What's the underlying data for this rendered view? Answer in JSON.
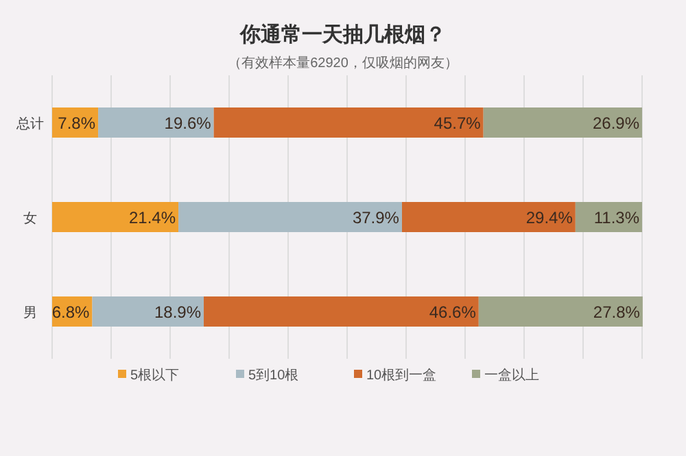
{
  "chart_data": {
    "type": "bar",
    "orientation": "horizontal",
    "stacked": true,
    "title": "你通常一天抽几根烟？",
    "subtitle": "（有效样本量62920，仅吸烟的网友）",
    "categories": [
      "总计",
      "女",
      "男"
    ],
    "series": [
      {
        "name": "5根以下",
        "color": "#f0a130",
        "values": [
          7.8,
          21.4,
          6.8
        ],
        "value_labels": [
          "7.8%",
          "21.4%",
          "6.8%"
        ]
      },
      {
        "name": "5到10根",
        "color": "#a9bbc4",
        "values": [
          19.6,
          37.9,
          18.9
        ],
        "value_labels": [
          "19.6%",
          "37.9%",
          "18.9%"
        ]
      },
      {
        "name": "10根到一盒",
        "color": "#d06a2e",
        "values": [
          45.7,
          29.4,
          46.6
        ],
        "value_labels": [
          "45.7%",
          "29.4%",
          "46.6%"
        ]
      },
      {
        "name": "一盒以上",
        "color": "#9fa68a",
        "values": [
          26.9,
          11.3,
          27.8
        ],
        "value_labels": [
          "26.9%",
          "11.3%",
          "27.8%"
        ]
      }
    ],
    "xlim": [
      0,
      100
    ],
    "xticks": [
      {
        "value": 0,
        "label": null
      },
      {
        "value": 10,
        "label": null
      },
      {
        "value": 20,
        "label": null
      },
      {
        "value": 30,
        "label": null
      },
      {
        "value": 40,
        "label": null
      },
      {
        "value": 50,
        "label": null
      },
      {
        "value": 60,
        "label": null
      },
      {
        "value": 70,
        "label": null
      },
      {
        "value": 80,
        "label": null
      },
      {
        "value": 90,
        "label": null
      },
      {
        "value": 100,
        "label": null
      }
    ],
    "tick_labels": "y",
    "grid": "x",
    "legend": "bottom"
  }
}
